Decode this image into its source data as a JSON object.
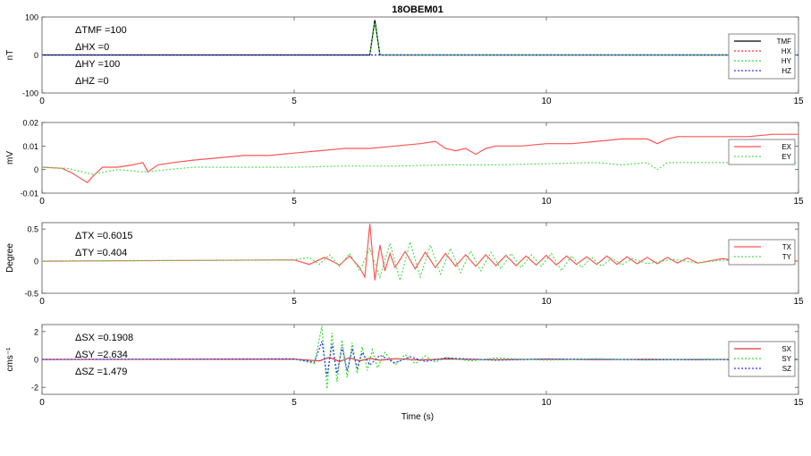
{
  "title": "18OBEM01",
  "xlabel": "Time (s)",
  "colors": {
    "TMF": "#000000",
    "HX": "#ff3333",
    "HY": "#33dd33",
    "HZ": "#3333ff",
    "EX": "#ff5555",
    "EY": "#55dd55",
    "TX": "#ff5555",
    "TY": "#55dd55",
    "SX": "#dd3333",
    "SY": "#33dd33",
    "SZ": "#3333ff"
  },
  "chart_data": [
    {
      "type": "line",
      "ylabel": "nT",
      "xlim": [
        0,
        15
      ],
      "ylim": [
        -100,
        100
      ],
      "xticks": [
        0,
        5,
        10,
        15
      ],
      "yticks": [
        100,
        0,
        -100
      ],
      "annotations": [
        "ΔTMF =100",
        "ΔHX =0",
        "ΔHY =100",
        "ΔHZ =0"
      ],
      "legend": "top-right",
      "series": [
        {
          "name": "TMF",
          "style": "solid",
          "x": [
            0,
            6.5,
            6.6,
            6.7,
            15
          ],
          "y": [
            0,
            0,
            92,
            0,
            0
          ]
        },
        {
          "name": "HX",
          "style": "dotted",
          "x": [
            0,
            15
          ],
          "y": [
            0,
            0
          ]
        },
        {
          "name": "HY",
          "style": "dotted",
          "x": [
            0,
            6.5,
            6.6,
            6.7,
            15
          ],
          "y": [
            0,
            0,
            85,
            0,
            0
          ]
        },
        {
          "name": "HZ",
          "style": "dotted",
          "x": [
            0,
            15
          ],
          "y": [
            0,
            0
          ]
        }
      ]
    },
    {
      "type": "line",
      "ylabel": "mV",
      "xlim": [
        0,
        15
      ],
      "ylim": [
        -0.01,
        0.02
      ],
      "xticks": [
        0,
        5,
        10,
        15
      ],
      "yticks": [
        0.02,
        0.01,
        0,
        -0.01
      ],
      "annotations": [],
      "legend": "top-right",
      "series": [
        {
          "name": "EX",
          "style": "solid",
          "x": [
            0,
            0.4,
            0.6,
            0.9,
            1.0,
            1.2,
            1.5,
            1.8,
            2.0,
            2.1,
            2.3,
            2.6,
            3.0,
            3.5,
            4.0,
            4.5,
            5.0,
            5.5,
            6.0,
            6.5,
            7.0,
            7.5,
            7.8,
            8.0,
            8.2,
            8.4,
            8.6,
            8.8,
            9.0,
            9.5,
            10.0,
            10.5,
            11.0,
            11.5,
            12.0,
            12.2,
            12.4,
            12.6,
            13.0,
            13.5,
            14.0,
            14.5,
            15.0
          ],
          "y": [
            0.001,
            0.0005,
            -0.0015,
            -0.0055,
            -0.003,
            0.001,
            0.001,
            0.002,
            0.003,
            -0.001,
            0.002,
            0.003,
            0.004,
            0.005,
            0.006,
            0.006,
            0.007,
            0.008,
            0.009,
            0.009,
            0.01,
            0.011,
            0.012,
            0.009,
            0.008,
            0.009,
            0.0065,
            0.009,
            0.01,
            0.01,
            0.011,
            0.011,
            0.012,
            0.013,
            0.013,
            0.011,
            0.013,
            0.014,
            0.014,
            0.014,
            0.014,
            0.015,
            0.015
          ]
        },
        {
          "name": "EY",
          "style": "dotted",
          "x": [
            0,
            0.5,
            1.0,
            1.5,
            2.0,
            2.5,
            3.0,
            4.0,
            5.0,
            6.0,
            7.0,
            8.0,
            9.0,
            10.0,
            11.0,
            11.5,
            12.0,
            12.2,
            12.4,
            13.0,
            14.0,
            15.0
          ],
          "y": [
            0.001,
            0.0005,
            -0.002,
            0.0,
            -0.001,
            0.0,
            0.001,
            0.001,
            0.001,
            0.0015,
            0.0015,
            0.002,
            0.002,
            0.0025,
            0.003,
            0.002,
            0.003,
            0.0,
            0.003,
            0.003,
            0.003,
            0.003
          ]
        }
      ]
    },
    {
      "type": "line",
      "ylabel": "Degree",
      "xlim": [
        0,
        15
      ],
      "ylim": [
        -0.5,
        0.6
      ],
      "xticks": [
        0,
        5,
        10,
        15
      ],
      "yticks": [
        0.5,
        0,
        -0.5
      ],
      "annotations": [
        "ΔTX =0.6015",
        "ΔTY =0.404"
      ],
      "legend": "top-right",
      "series": [
        {
          "name": "TX",
          "style": "solid",
          "x": [
            0,
            5.0,
            5.3,
            5.6,
            5.9,
            6.1,
            6.3,
            6.4,
            6.5,
            6.6,
            6.7,
            6.8,
            6.9,
            7.0,
            7.2,
            7.4,
            7.6,
            7.8,
            8.0,
            8.2,
            8.4,
            8.6,
            8.8,
            9.0,
            9.2,
            9.4,
            9.6,
            9.8,
            10.0,
            10.2,
            10.4,
            10.6,
            10.8,
            11.0,
            11.2,
            11.4,
            11.6,
            11.8,
            12.0,
            12.2,
            12.4,
            12.6,
            12.8,
            13.0,
            13.5,
            14.0,
            14.5,
            15.0
          ],
          "y": [
            0,
            0.02,
            -0.05,
            0.06,
            -0.06,
            0.08,
            -0.1,
            -0.25,
            0.58,
            -0.3,
            0.25,
            -0.15,
            0.12,
            -0.1,
            0.15,
            -0.12,
            0.14,
            -0.1,
            0.12,
            -0.08,
            0.1,
            -0.08,
            0.1,
            -0.07,
            0.09,
            -0.07,
            0.08,
            -0.06,
            0.09,
            -0.06,
            0.08,
            -0.05,
            0.07,
            -0.05,
            0.08,
            -0.05,
            0.07,
            -0.04,
            0.06,
            -0.04,
            0.06,
            -0.03,
            0.05,
            -0.03,
            0.04,
            -0.02,
            0.03,
            0
          ]
        },
        {
          "name": "TY",
          "style": "dotted",
          "x": [
            0,
            5.0,
            5.3,
            5.5,
            5.7,
            5.9,
            6.1,
            6.3,
            6.5,
            6.7,
            6.9,
            7.1,
            7.3,
            7.5,
            7.7,
            7.9,
            8.1,
            8.3,
            8.5,
            8.7,
            8.9,
            9.1,
            9.3,
            9.5,
            9.7,
            9.9,
            10.1,
            10.3,
            10.5,
            10.7,
            10.9,
            11.1,
            11.3,
            11.5,
            11.7,
            12.0,
            12.5,
            13.0,
            13.5,
            14.0,
            14.5,
            15.0
          ],
          "y": [
            0,
            0.02,
            0.06,
            -0.05,
            0.1,
            -0.08,
            0.12,
            -0.15,
            0.2,
            -0.25,
            0.28,
            -0.3,
            0.3,
            -0.25,
            0.25,
            -0.2,
            0.2,
            -0.18,
            0.16,
            -0.15,
            0.14,
            -0.12,
            0.12,
            -0.1,
            0.1,
            -0.08,
            0.12,
            -0.15,
            0.08,
            -0.1,
            0.06,
            -0.08,
            0.05,
            -0.06,
            0.04,
            -0.04,
            0.03,
            -0.03,
            0.02,
            -0.02,
            0.01,
            0
          ]
        }
      ]
    },
    {
      "type": "line",
      "ylabel": "cms⁻¹",
      "xlim": [
        0,
        15
      ],
      "ylim": [
        -2.5,
        2.5
      ],
      "xticks": [
        0,
        5,
        10,
        15
      ],
      "yticks": [
        2,
        0,
        -2
      ],
      "annotations": [
        "ΔSX =0.1908",
        "ΔSY =2.634",
        "ΔSZ =1.479"
      ],
      "xlabel": "Time (s)",
      "legend": "top-right",
      "series": [
        {
          "name": "SX",
          "style": "solid",
          "x": [
            0,
            5.0,
            5.5,
            5.7,
            5.9,
            6.1,
            6.3,
            6.5,
            6.7,
            7.0,
            7.5,
            8.0,
            9.0,
            10.0,
            11.0,
            12.0,
            13.0,
            14.0,
            15.0
          ],
          "y": [
            0,
            0.02,
            -0.1,
            0.15,
            -0.15,
            0.12,
            -0.1,
            0.08,
            -0.06,
            0.05,
            -0.04,
            0.03,
            -0.02,
            0.02,
            -0.01,
            0.01,
            -0.01,
            0.01,
            0
          ]
        },
        {
          "name": "SY",
          "style": "dotted",
          "x": [
            0,
            5.0,
            5.4,
            5.55,
            5.65,
            5.75,
            5.85,
            5.95,
            6.05,
            6.15,
            6.25,
            6.35,
            6.45,
            6.55,
            6.65,
            6.8,
            7.0,
            7.2,
            7.4,
            7.6,
            7.8,
            8.0,
            8.5,
            9.0,
            10.0,
            11.0,
            12.0,
            13.0,
            14.0,
            15.0
          ],
          "y": [
            0,
            0.05,
            -0.3,
            2.4,
            -2.1,
            1.9,
            -1.6,
            1.4,
            -1.3,
            1.2,
            -1.0,
            0.9,
            -0.8,
            0.7,
            -0.6,
            0.5,
            -0.4,
            0.35,
            -0.3,
            0.25,
            -0.2,
            0.15,
            -0.1,
            0.1,
            -0.05,
            0.05,
            -0.04,
            0.03,
            -0.02,
            0
          ]
        },
        {
          "name": "SZ",
          "style": "dotted",
          "x": [
            0,
            5.0,
            5.4,
            5.55,
            5.65,
            5.75,
            5.85,
            5.95,
            6.05,
            6.15,
            6.25,
            6.35,
            6.5,
            6.7,
            7.0,
            7.3,
            7.6,
            8.0,
            9.0,
            10.0,
            12.0,
            15.0
          ],
          "y": [
            0,
            0.03,
            -0.2,
            1.3,
            -1.2,
            1.1,
            -1.0,
            0.9,
            -0.8,
            0.7,
            -0.6,
            0.5,
            -0.4,
            0.3,
            -0.25,
            0.2,
            -0.15,
            0.1,
            -0.05,
            0.03,
            -0.02,
            0
          ]
        }
      ]
    }
  ]
}
